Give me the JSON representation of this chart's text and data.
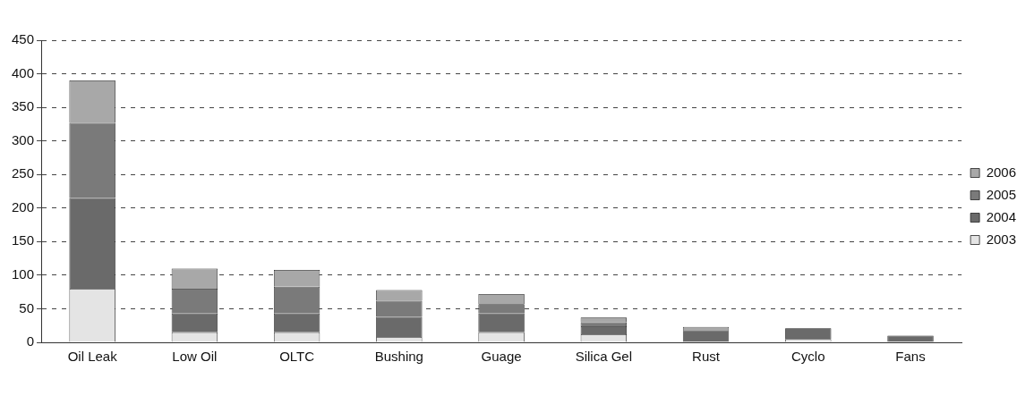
{
  "chart_data": {
    "type": "bar",
    "stacked": true,
    "categories": [
      "Oil Leak",
      "Low Oil",
      "OLTC",
      "Bushing",
      "Guage",
      "Silica Gel",
      "Rust",
      "Cyclo",
      "Fans"
    ],
    "series": [
      {
        "name": "2003",
        "color": "#e4e4e4",
        "values": [
          80,
          15,
          15,
          8,
          15,
          12,
          0,
          5,
          0
        ]
      },
      {
        "name": "2004",
        "color": "#6a6a6a",
        "values": [
          135,
          28,
          28,
          30,
          28,
          12,
          17,
          16,
          10
        ]
      },
      {
        "name": "2005",
        "color": "#7a7a7a",
        "values": [
          112,
          37,
          40,
          24,
          14,
          6,
          0,
          0,
          0
        ]
      },
      {
        "name": "2006",
        "color": "#a8a8a8",
        "values": [
          63,
          30,
          25,
          16,
          15,
          7,
          6,
          0,
          0
        ]
      }
    ],
    "ylim": [
      0,
      450
    ],
    "yticks": [
      0,
      50,
      100,
      150,
      200,
      250,
      300,
      350,
      400,
      450
    ],
    "grid": "y",
    "legend": "right"
  }
}
